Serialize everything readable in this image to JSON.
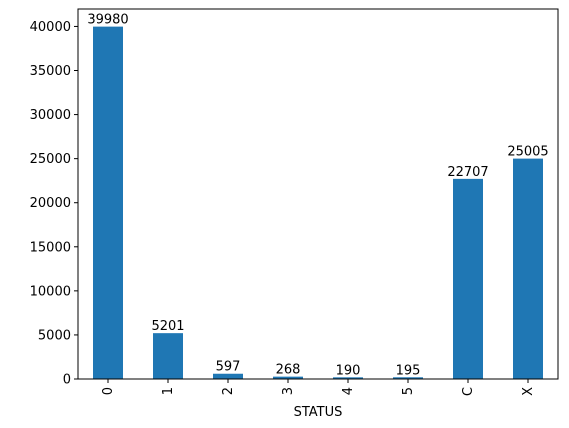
{
  "chart_data": {
    "type": "bar",
    "title": "",
    "xlabel": "STATUS",
    "ylabel": "",
    "categories": [
      "0",
      "1",
      "2",
      "3",
      "4",
      "5",
      "C",
      "X"
    ],
    "values": [
      39980,
      5201,
      597,
      268,
      190,
      195,
      22707,
      25005
    ],
    "data_labels": [
      "39980",
      "5201",
      "597",
      "268",
      "190",
      "195",
      "22707",
      "25005"
    ],
    "y_ticks": [
      0,
      5000,
      10000,
      15000,
      20000,
      25000,
      30000,
      35000,
      40000
    ],
    "y_tick_labels": [
      "0",
      "5000",
      "10000",
      "15000",
      "20000",
      "25000",
      "30000",
      "35000",
      "40000"
    ],
    "ylim": [
      0,
      41979
    ],
    "x_tick_rotation": "vertical",
    "grid": false,
    "legend": "none",
    "bar_color": "#1f77b4"
  }
}
